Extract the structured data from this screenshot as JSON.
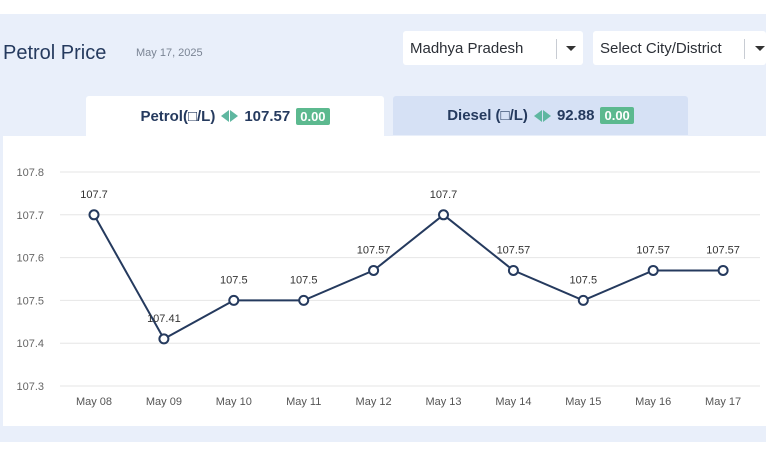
{
  "header": {
    "title": "Petrol Price",
    "date": "May 17, 2025"
  },
  "filters": {
    "state": "Madhya Pradesh",
    "city_placeholder": "Select City/District"
  },
  "tabs": [
    {
      "label": "Petrol(□/L)",
      "price": "107.57",
      "change": "0.00",
      "active": true
    },
    {
      "label": "Diesel (□/L)",
      "price": "92.88",
      "change": "0.00",
      "active": false
    }
  ],
  "colors": {
    "accent": "#253a5e",
    "badge": "#5cb98f",
    "arrow": "#5fb7a0",
    "panel": "#e9effa",
    "inactive_tab": "#d6e1f5"
  },
  "chart_data": {
    "type": "line",
    "categories": [
      "May 08",
      "May 09",
      "May 10",
      "May 11",
      "May 12",
      "May 13",
      "May 14",
      "May 15",
      "May 16",
      "May 17"
    ],
    "values": [
      107.7,
      107.41,
      107.5,
      107.5,
      107.57,
      107.7,
      107.57,
      107.5,
      107.57,
      107.57
    ],
    "labels": [
      "107.7",
      "107.41",
      "107.5",
      "107.5",
      "107.57",
      "107.7",
      "107.57",
      "107.5",
      "107.57",
      "107.57"
    ],
    "yticks": [
      "107.3",
      "107.4",
      "107.5",
      "107.6",
      "107.7",
      "107.8"
    ],
    "ylim": [
      107.3,
      107.8
    ],
    "grid": true,
    "line_color": "#253a5e"
  }
}
